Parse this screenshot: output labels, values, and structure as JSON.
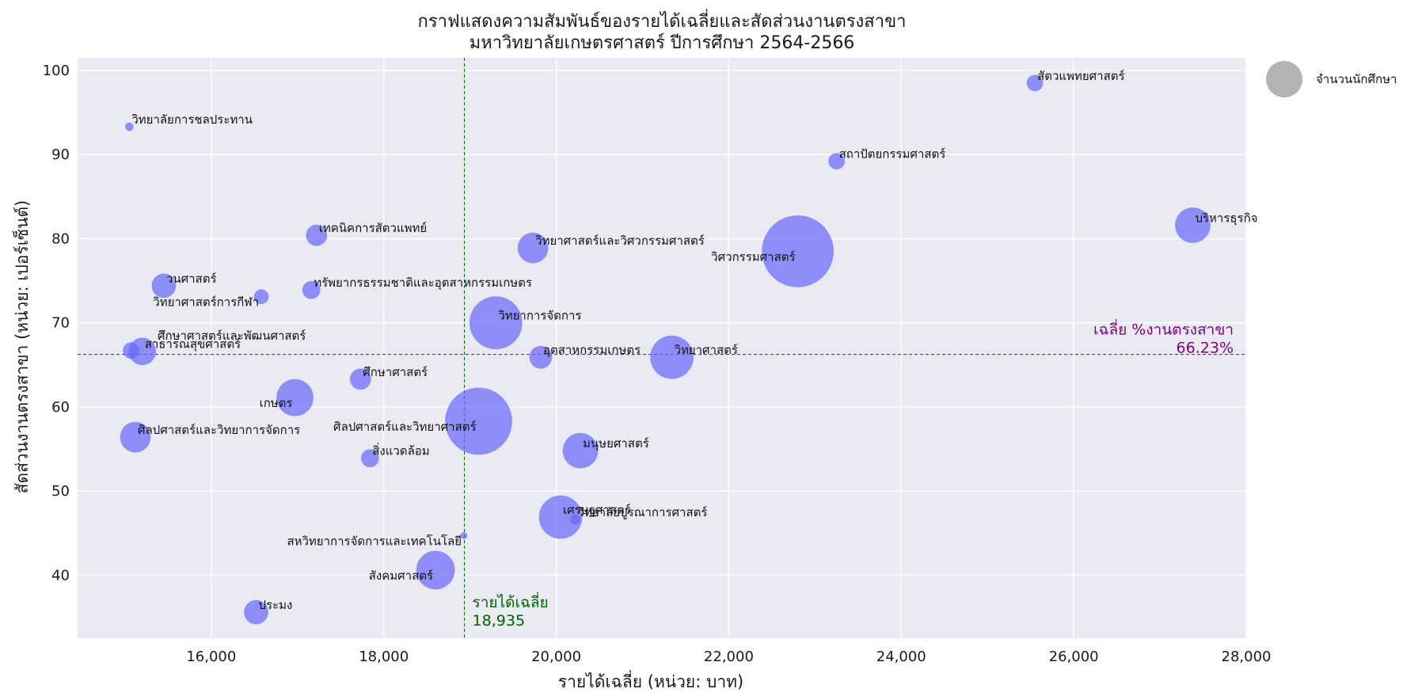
{
  "chart_data": {
    "type": "scatter",
    "title_line1": "กราฟแสดงความสัมพันธ์ของรายได้เฉลี่ยและสัดส่วนงานตรงสาขา",
    "title_line2": "มหาวิทยาลัยเกษตรศาสตร์ ปีการศึกษา 2564-2566",
    "xlabel": "รายได้เฉลี่ย (หน่วย: บาท)",
    "ylabel": "สัดส่วนงานตรงสาขา (หน่วย: เปอร์เซ็นต์)",
    "xlim": [
      14450,
      28000
    ],
    "ylim": [
      32.5,
      101.5
    ],
    "xticks": [
      16000,
      18000,
      20000,
      22000,
      24000,
      26000,
      28000
    ],
    "xtick_labels": [
      "16,000",
      "18,000",
      "20,000",
      "22,000",
      "24,000",
      "26,000",
      "28,000"
    ],
    "yticks": [
      40,
      50,
      60,
      70,
      80,
      90,
      100
    ],
    "ytick_labels": [
      "40",
      "50",
      "60",
      "70",
      "80",
      "90",
      "100"
    ],
    "grid": true,
    "legend": {
      "label": "จำนวนนักศึกษา",
      "placement": "outside-top-right"
    },
    "bubble_color": "#6666ff",
    "background_color": "#eaeaf2",
    "avg_income": {
      "value": 18935,
      "label": "รายได้เฉลี่ย",
      "value_label": "18,935",
      "color": "#006400"
    },
    "avg_direct": {
      "value": 66.23,
      "label": "เฉลี่ย %งานตรงสาขา",
      "value_label": "66.23%",
      "color": "#800080"
    },
    "points": [
      {
        "name": "สัตวแพทยศาสตร์",
        "x": 25550,
        "y": 98.5,
        "size": 10,
        "label_anchor": "start"
      },
      {
        "name": "วิทยาลัยการชลประทาน",
        "x": 15050,
        "y": 93.3,
        "size": 5,
        "label_anchor": "start"
      },
      {
        "name": "สถาปัตยกรรมศาสตร์",
        "x": 23250,
        "y": 89.2,
        "size": 10,
        "label_anchor": "start"
      },
      {
        "name": "บริหารธุรกิจ",
        "x": 27380,
        "y": 81.6,
        "size": 22,
        "label_anchor": "start"
      },
      {
        "name": "เทคนิคการสัตวแพทย์",
        "x": 17220,
        "y": 80.4,
        "size": 13,
        "label_anchor": "start"
      },
      {
        "name": "วิทยาศาสตร์และวิศวกรรมศาสตร์",
        "x": 19730,
        "y": 78.9,
        "size": 19,
        "label_anchor": "start"
      },
      {
        "name": "วิศวกรรมศาสตร์",
        "x": 22800,
        "y": 78.5,
        "size": 45,
        "label_anchor": "end"
      },
      {
        "name": "วนศาสตร์",
        "x": 15450,
        "y": 74.4,
        "size": 15,
        "label_anchor": "start"
      },
      {
        "name": "ทรัพยากรธรรมชาติและอุตสาหกรรมเกษตร",
        "x": 17160,
        "y": 73.9,
        "size": 11,
        "label_anchor": "start"
      },
      {
        "name": "วิทยาศาสตร์การกีฬา",
        "x": 16580,
        "y": 73.1,
        "size": 9,
        "label_anchor": "end"
      },
      {
        "name": "วิทยาการจัดการ",
        "x": 19300,
        "y": 70.0,
        "size": 33,
        "label_anchor": "start"
      },
      {
        "name": "ศึกษาศาสตร์และพัฒนศาสตร์",
        "x": 15350,
        "y": 67.6,
        "size": 0,
        "label_anchor": "start"
      },
      {
        "name": "สาธารณสุขศาสตร์",
        "x": 15200,
        "y": 66.6,
        "size": 17,
        "label_anchor": "start"
      },
      {
        "name": "",
        "x": 15070,
        "y": 66.7,
        "size": 10,
        "label_anchor": "start"
      },
      {
        "name": "อุตสาหกรรมเกษตร",
        "x": 19820,
        "y": 65.9,
        "size": 14,
        "label_anchor": "start"
      },
      {
        "name": "วิทยาศาสตร์",
        "x": 21340,
        "y": 65.9,
        "size": 27,
        "label_anchor": "start"
      },
      {
        "name": "ศึกษาศาสตร์",
        "x": 17730,
        "y": 63.3,
        "size": 13,
        "label_anchor": "start"
      },
      {
        "name": "เกษตร",
        "x": 16970,
        "y": 61.1,
        "size": 23,
        "label_anchor": "end"
      },
      {
        "name": "ศิลปศาสตร์และวิทยาศาสตร์",
        "x": 19100,
        "y": 58.3,
        "size": 42,
        "label_anchor": "end"
      },
      {
        "name": "ศิลปศาสตร์และวิทยาการจัดการ",
        "x": 15120,
        "y": 56.4,
        "size": 19,
        "label_anchor": "start"
      },
      {
        "name": "มนุษยศาสตร์",
        "x": 20280,
        "y": 54.8,
        "size": 22,
        "label_anchor": "start"
      },
      {
        "name": "สิ่งแวดล้อม",
        "x": 17840,
        "y": 53.9,
        "size": 11,
        "label_anchor": "start"
      },
      {
        "name": "เศรษฐศาสตร์",
        "x": 20050,
        "y": 46.9,
        "size": 27,
        "label_anchor": "start"
      },
      {
        "name": "วิทยาลัยบูรณาการศาสตร์",
        "x": 20220,
        "y": 46.6,
        "size": 6,
        "label_anchor": "start"
      },
      {
        "name": "สหวิทยาการจัดการและเทคโนโลยี",
        "x": 18930,
        "y": 44.7,
        "size": 4,
        "label_anchor": "end"
      },
      {
        "name": "สังคมศาสตร์",
        "x": 18600,
        "y": 40.6,
        "size": 24,
        "label_anchor": "end"
      },
      {
        "name": "ประมง",
        "x": 16520,
        "y": 35.6,
        "size": 15,
        "label_anchor": "start"
      }
    ]
  }
}
